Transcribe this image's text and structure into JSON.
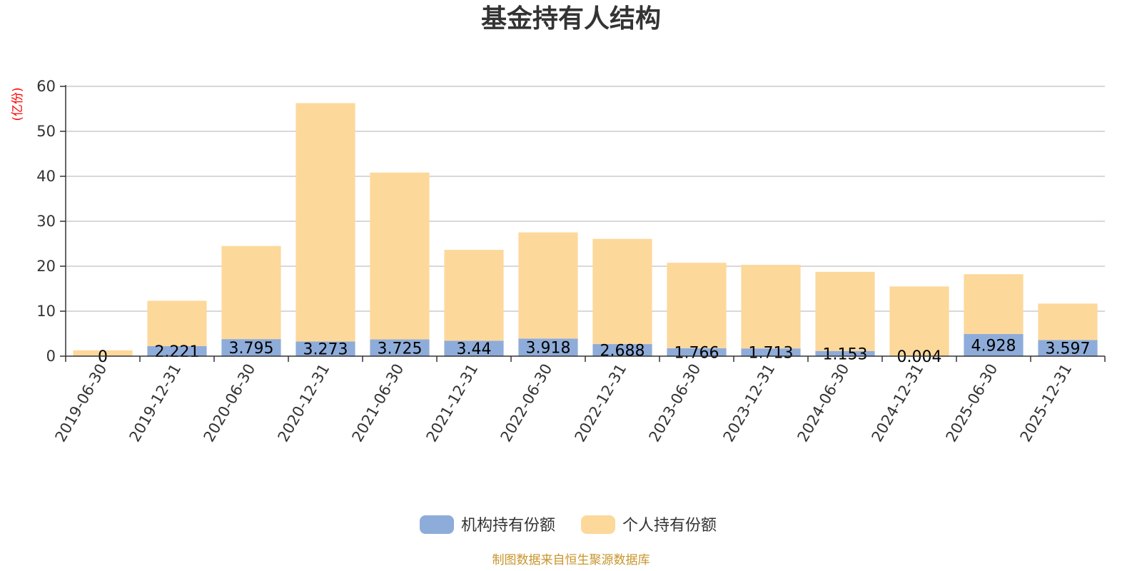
{
  "chart_data": {
    "type": "bar",
    "stacked": true,
    "title": "基金持有人结构",
    "ylabel": "(亿份)",
    "ylim": [
      0,
      60
    ],
    "yticks": [
      0,
      10,
      20,
      30,
      40,
      50,
      60
    ],
    "grid": true,
    "legend_position": "bottom-center",
    "categories": [
      "2019-06-30",
      "2019-12-31",
      "2020-06-30",
      "2020-12-31",
      "2021-06-30",
      "2021-12-31",
      "2022-06-30",
      "2022-12-31",
      "2023-06-30",
      "2023-12-31",
      "2024-06-30",
      "2024-12-31",
      "2025-06-30",
      "2025-12-31"
    ],
    "series": [
      {
        "name": "机构持有份额",
        "color": "#8eacd9",
        "values": [
          0,
          2.221,
          3.795,
          3.273,
          3.725,
          3.44,
          3.918,
          2.688,
          1.766,
          1.713,
          1.153,
          0.004,
          4.928,
          3.597
        ],
        "labels": [
          "0",
          "2.221",
          "3.795",
          "3.273",
          "3.725",
          "3.44",
          "3.918",
          "2.688",
          "1.766",
          "1.713",
          "1.153",
          "0.004",
          "4.928",
          "3.597"
        ]
      },
      {
        "name": "个人持有份额",
        "color": "#fdd89b",
        "values": [
          1.3,
          10.1,
          20.7,
          53.0,
          37.1,
          20.2,
          23.6,
          23.4,
          19.0,
          18.6,
          17.6,
          15.5,
          13.3,
          8.1
        ]
      }
    ]
  },
  "source_note": "制图数据来自恒生聚源数据库"
}
